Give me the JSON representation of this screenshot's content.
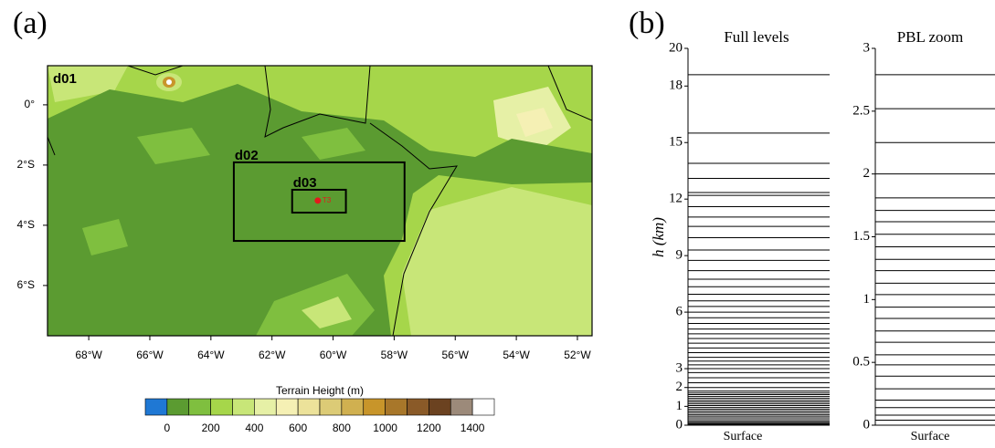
{
  "panel_a": {
    "label": "(a)",
    "map": {
      "xlim": [
        -69.35,
        -51.52
      ],
      "ylim": [
        -7.67,
        1.3
      ],
      "xticks": [
        {
          "value": -68,
          "label": "68°W"
        },
        {
          "value": -66,
          "label": "66°W"
        },
        {
          "value": -64,
          "label": "64°W"
        },
        {
          "value": -62,
          "label": "62°W"
        },
        {
          "value": -60,
          "label": "60°W"
        },
        {
          "value": -58,
          "label": "58°W"
        },
        {
          "value": -56,
          "label": "56°W"
        },
        {
          "value": -54,
          "label": "54°W"
        },
        {
          "value": -52,
          "label": "52°W"
        }
      ],
      "yticks": [
        {
          "value": 0,
          "label": "0°"
        },
        {
          "value": -2,
          "label": "2°S"
        },
        {
          "value": -4,
          "label": "4°S"
        },
        {
          "value": -6,
          "label": "6°S"
        }
      ],
      "outer_domain": "d01",
      "boxes": [
        {
          "name": "d02",
          "lon": [
            -63.25,
            -57.66
          ],
          "lat": [
            -4.52,
            -1.91
          ]
        },
        {
          "name": "d03",
          "lon": [
            -61.34,
            -59.58
          ],
          "lat": [
            -3.58,
            -2.82
          ]
        }
      ],
      "site": {
        "name": "T3",
        "lon": -60.5,
        "lat": -3.18,
        "color": "#e41a1c"
      }
    },
    "colorbar": {
      "title": "Terrain Height  (m)",
      "lim": [
        -100,
        1500
      ],
      "ticks": [
        0,
        200,
        400,
        600,
        800,
        1000,
        1200,
        1400
      ],
      "colors": [
        "#1f78d4",
        "#5b9b31",
        "#7fbf3f",
        "#a6d64a",
        "#c8e678",
        "#e6f0a6",
        "#f5f0b4",
        "#ece29a",
        "#dccb76",
        "#d0b050",
        "#c8952a",
        "#a8772a",
        "#8a5a28",
        "#6b4220",
        "#9c8a7a",
        "#ffffff"
      ]
    }
  },
  "panel_b": {
    "label": "(b)",
    "ylabel": "h (km)",
    "charts": [
      {
        "title": "Full levels",
        "xlabel": "Surface",
        "ylim": [
          0,
          20
        ],
        "yticks": [
          0,
          1,
          2,
          3,
          6,
          9,
          12,
          15,
          18,
          20
        ],
        "levels": [
          18.6,
          15.5,
          13.9,
          13.1,
          12.35,
          12.2,
          11.6,
          11.05,
          10.55,
          9.95,
          9.3,
          8.75,
          8.2,
          7.75,
          7.35,
          6.95,
          6.6,
          6.3,
          6.0,
          5.7,
          5.4,
          5.1,
          4.85,
          4.6,
          4.35,
          4.1,
          3.85,
          3.6,
          3.4,
          3.2,
          3.0,
          2.79,
          2.52,
          2.25,
          2.0,
          1.81,
          1.71,
          1.62,
          1.52,
          1.42,
          1.32,
          1.23,
          1.13,
          1.04,
          0.94,
          0.85,
          0.75,
          0.66,
          0.56,
          0.48,
          0.39,
          0.29,
          0.2,
          0.14,
          0.08,
          0.04
        ]
      },
      {
        "title": "PBL zoom",
        "xlabel": "Surface",
        "ylim": [
          0,
          3
        ],
        "yticks": [
          0,
          0.5,
          1,
          1.5,
          2,
          2.5,
          3
        ],
        "levels": [
          2.79,
          2.52,
          2.25,
          2.0,
          1.81,
          1.71,
          1.62,
          1.52,
          1.42,
          1.32,
          1.23,
          1.13,
          1.04,
          0.94,
          0.85,
          0.75,
          0.66,
          0.56,
          0.48,
          0.39,
          0.29,
          0.2,
          0.14,
          0.08,
          0.04
        ]
      }
    ]
  }
}
